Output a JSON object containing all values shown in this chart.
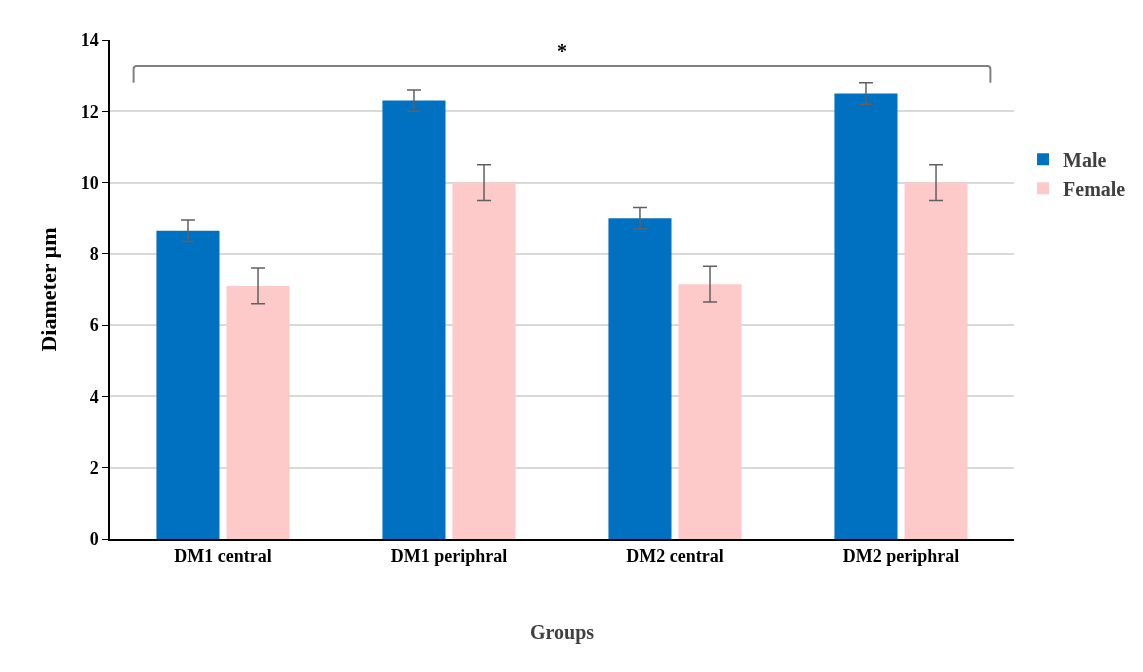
{
  "chart_data": {
    "type": "bar",
    "xlabel": "Groups",
    "ylabel": "Diameter µm",
    "categories": [
      "DM1 central",
      "DM1 periphral",
      "DM2 central",
      "DM2 periphral"
    ],
    "series": [
      {
        "name": "Male",
        "color": "#0070c0",
        "values": [
          8.65,
          12.3,
          9.0,
          12.5
        ],
        "errors": [
          0.3,
          0.3,
          0.3,
          0.3
        ]
      },
      {
        "name": "Female",
        "color": "#fdc9c9",
        "values": [
          7.1,
          10.0,
          7.15,
          10.0
        ],
        "errors": [
          0.5,
          0.5,
          0.5,
          0.5
        ]
      }
    ],
    "ylim": [
      0,
      14
    ],
    "yticks": [
      0,
      2,
      4,
      6,
      8,
      10,
      12,
      14
    ],
    "grid": "y",
    "legend": "right",
    "annotations": [
      "*"
    ]
  }
}
